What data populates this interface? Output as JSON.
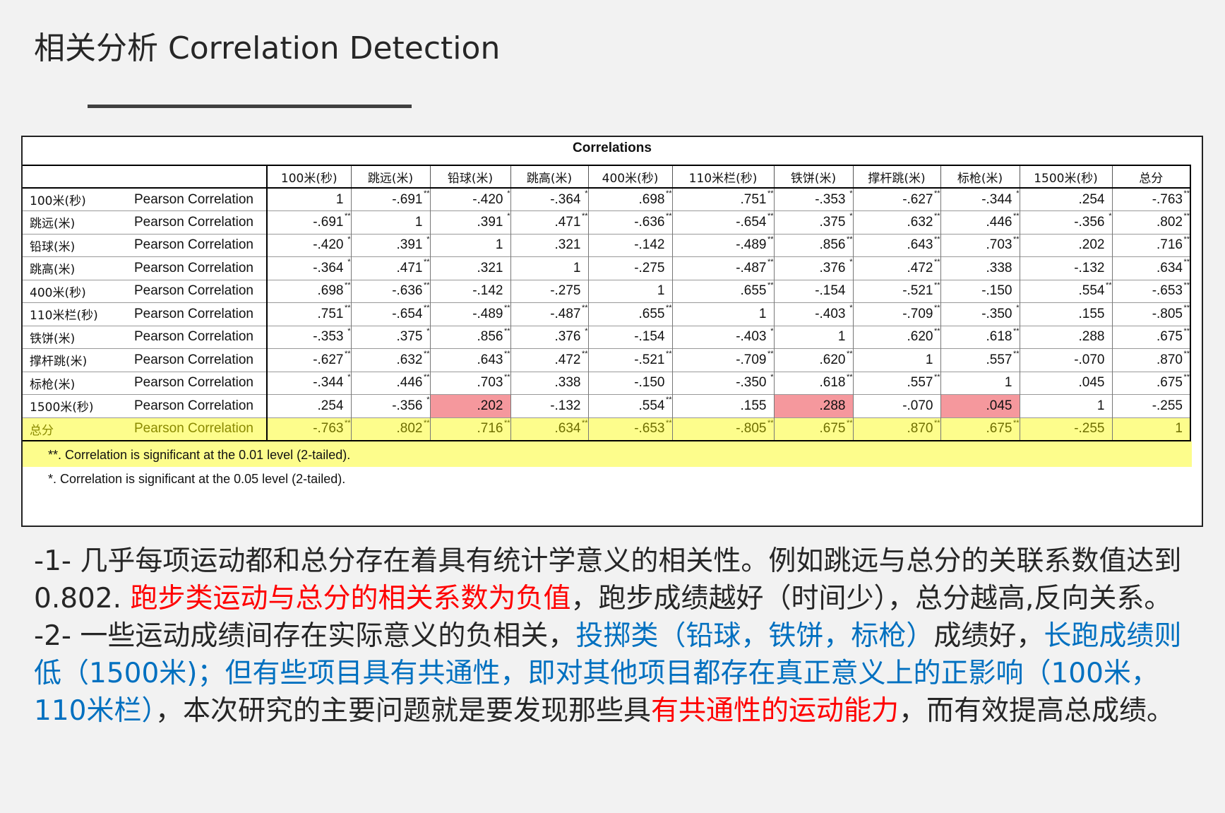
{
  "title": "相关分析 Correlation Detection",
  "table": {
    "heading": "Correlations",
    "columns": [
      "100米(秒)",
      "跳远(米)",
      "铅球(米)",
      "跳高(米)",
      "400米(秒)",
      "110米栏(秒)",
      "铁饼(米)",
      "撑杆跳(米)",
      "标枪(米)",
      "1500米(秒)",
      "总分"
    ],
    "stat_label": "Pearson Correlation",
    "rows": [
      {
        "name": "100米(秒)",
        "cells": [
          {
            "v": "1",
            "s": ""
          },
          {
            "v": "-.691",
            "s": "**"
          },
          {
            "v": "-.420",
            "s": "*"
          },
          {
            "v": "-.364",
            "s": "*"
          },
          {
            "v": ".698",
            "s": "**"
          },
          {
            "v": ".751",
            "s": "**"
          },
          {
            "v": "-.353",
            "s": "*"
          },
          {
            "v": "-.627",
            "s": "**"
          },
          {
            "v": "-.344",
            "s": "*"
          },
          {
            "v": ".254",
            "s": ""
          },
          {
            "v": "-.763",
            "s": "**"
          }
        ]
      },
      {
        "name": "跳远(米)",
        "cells": [
          {
            "v": "-.691",
            "s": "**"
          },
          {
            "v": "1",
            "s": ""
          },
          {
            "v": ".391",
            "s": "*"
          },
          {
            "v": ".471",
            "s": "**"
          },
          {
            "v": "-.636",
            "s": "**"
          },
          {
            "v": "-.654",
            "s": "**"
          },
          {
            "v": ".375",
            "s": "*"
          },
          {
            "v": ".632",
            "s": "**"
          },
          {
            "v": ".446",
            "s": "**"
          },
          {
            "v": "-.356",
            "s": "*"
          },
          {
            "v": ".802",
            "s": "**"
          }
        ]
      },
      {
        "name": "铅球(米)",
        "cells": [
          {
            "v": "-.420",
            "s": "*"
          },
          {
            "v": ".391",
            "s": "*"
          },
          {
            "v": "1",
            "s": ""
          },
          {
            "v": ".321",
            "s": ""
          },
          {
            "v": "-.142",
            "s": ""
          },
          {
            "v": "-.489",
            "s": "**"
          },
          {
            "v": ".856",
            "s": "**"
          },
          {
            "v": ".643",
            "s": "**"
          },
          {
            "v": ".703",
            "s": "**"
          },
          {
            "v": ".202",
            "s": ""
          },
          {
            "v": ".716",
            "s": "**"
          }
        ]
      },
      {
        "name": "跳高(米)",
        "cells": [
          {
            "v": "-.364",
            "s": "*"
          },
          {
            "v": ".471",
            "s": "**"
          },
          {
            "v": ".321",
            "s": ""
          },
          {
            "v": "1",
            "s": ""
          },
          {
            "v": "-.275",
            "s": ""
          },
          {
            "v": "-.487",
            "s": "**"
          },
          {
            "v": ".376",
            "s": "*"
          },
          {
            "v": ".472",
            "s": "**"
          },
          {
            "v": ".338",
            "s": ""
          },
          {
            "v": "-.132",
            "s": ""
          },
          {
            "v": ".634",
            "s": "**"
          }
        ]
      },
      {
        "name": "400米(秒)",
        "cells": [
          {
            "v": ".698",
            "s": "**"
          },
          {
            "v": "-.636",
            "s": "**"
          },
          {
            "v": "-.142",
            "s": ""
          },
          {
            "v": "-.275",
            "s": ""
          },
          {
            "v": "1",
            "s": ""
          },
          {
            "v": ".655",
            "s": "**"
          },
          {
            "v": "-.154",
            "s": ""
          },
          {
            "v": "-.521",
            "s": "**"
          },
          {
            "v": "-.150",
            "s": ""
          },
          {
            "v": ".554",
            "s": "**"
          },
          {
            "v": "-.653",
            "s": "**"
          }
        ]
      },
      {
        "name": "110米栏(秒)",
        "cells": [
          {
            "v": ".751",
            "s": "**"
          },
          {
            "v": "-.654",
            "s": "**"
          },
          {
            "v": "-.489",
            "s": "**"
          },
          {
            "v": "-.487",
            "s": "**"
          },
          {
            "v": ".655",
            "s": "**"
          },
          {
            "v": "1",
            "s": ""
          },
          {
            "v": "-.403",
            "s": "*"
          },
          {
            "v": "-.709",
            "s": "**"
          },
          {
            "v": "-.350",
            "s": "*"
          },
          {
            "v": ".155",
            "s": ""
          },
          {
            "v": "-.805",
            "s": "**"
          }
        ]
      },
      {
        "name": "铁饼(米)",
        "cells": [
          {
            "v": "-.353",
            "s": "*"
          },
          {
            "v": ".375",
            "s": "*"
          },
          {
            "v": ".856",
            "s": "**"
          },
          {
            "v": ".376",
            "s": "*"
          },
          {
            "v": "-.154",
            "s": ""
          },
          {
            "v": "-.403",
            "s": "*"
          },
          {
            "v": "1",
            "s": ""
          },
          {
            "v": ".620",
            "s": "**"
          },
          {
            "v": ".618",
            "s": "**"
          },
          {
            "v": ".288",
            "s": ""
          },
          {
            "v": ".675",
            "s": "**"
          }
        ]
      },
      {
        "name": "撑杆跳(米)",
        "cells": [
          {
            "v": "-.627",
            "s": "**"
          },
          {
            "v": ".632",
            "s": "**"
          },
          {
            "v": ".643",
            "s": "**"
          },
          {
            "v": ".472",
            "s": "**"
          },
          {
            "v": "-.521",
            "s": "**"
          },
          {
            "v": "-.709",
            "s": "**"
          },
          {
            "v": ".620",
            "s": "**"
          },
          {
            "v": "1",
            "s": ""
          },
          {
            "v": ".557",
            "s": "**"
          },
          {
            "v": "-.070",
            "s": ""
          },
          {
            "v": ".870",
            "s": "**"
          }
        ]
      },
      {
        "name": "标枪(米)",
        "cells": [
          {
            "v": "-.344",
            "s": "*"
          },
          {
            "v": ".446",
            "s": "**"
          },
          {
            "v": ".703",
            "s": "**"
          },
          {
            "v": ".338",
            "s": ""
          },
          {
            "v": "-.150",
            "s": ""
          },
          {
            "v": "-.350",
            "s": "*"
          },
          {
            "v": ".618",
            "s": "**"
          },
          {
            "v": ".557",
            "s": "**"
          },
          {
            "v": "1",
            "s": ""
          },
          {
            "v": ".045",
            "s": ""
          },
          {
            "v": ".675",
            "s": "**"
          }
        ]
      },
      {
        "name": "1500米(秒)",
        "cells": [
          {
            "v": ".254",
            "s": ""
          },
          {
            "v": "-.356",
            "s": "*"
          },
          {
            "v": ".202",
            "s": "",
            "hl": "red"
          },
          {
            "v": "-.132",
            "s": ""
          },
          {
            "v": ".554",
            "s": "**"
          },
          {
            "v": ".155",
            "s": ""
          },
          {
            "v": ".288",
            "s": "",
            "hl": "red"
          },
          {
            "v": "-.070",
            "s": ""
          },
          {
            "v": ".045",
            "s": "",
            "hl": "red"
          },
          {
            "v": "1",
            "s": ""
          },
          {
            "v": "-.255",
            "s": ""
          }
        ]
      },
      {
        "name": "总分",
        "hl": "yellow",
        "cells": [
          {
            "v": "-.763",
            "s": "**"
          },
          {
            "v": ".802",
            "s": "**"
          },
          {
            "v": ".716",
            "s": "**"
          },
          {
            "v": ".634",
            "s": "**"
          },
          {
            "v": "-.653",
            "s": "**"
          },
          {
            "v": "-.805",
            "s": "**"
          },
          {
            "v": ".675",
            "s": "**"
          },
          {
            "v": ".870",
            "s": "**"
          },
          {
            "v": ".675",
            "s": "**"
          },
          {
            "v": "-.255",
            "s": ""
          },
          {
            "v": "1",
            "s": ""
          }
        ]
      }
    ],
    "footnotes": [
      "**. Correlation is significant at the 0.01 level (2-tailed).",
      "*. Correlation is significant at the 0.05 level (2-tailed)."
    ],
    "colors": {
      "red_highlight": "#f5989d",
      "yellow_highlight": "#fdfd8c"
    }
  },
  "body": {
    "p1_a": "-1- 几乎每项运动都和总分存在着具有统计学意义的相关性。例如跳远与总分的关联系数值达到0.802. ",
    "p1_red": "跑步类运动与总分的相关系数为负值",
    "p1_b": "，跑步成绩越好（时间少），总分越高,反向关系。",
    "p2_a": "-2- 一些运动成绩间存在实际意义的负相关，",
    "p2_blue": "投掷类（铅球，铁饼，标枪）",
    "p2_b": "成绩好，",
    "p2_blue2": "长跑成绩则低（1500米)；但有些项目具有共通性，即对其他项目都存在真正意义上的正影响（100米，110米栏）",
    "p2_c": "，本次研究的主要问题就是要发现那些具",
    "p2_red": "有共通性的运动能力",
    "p2_d": "，而有效提高总成绩。",
    "colors": {
      "red": "#ff0000",
      "blue": "#0070c0"
    }
  }
}
